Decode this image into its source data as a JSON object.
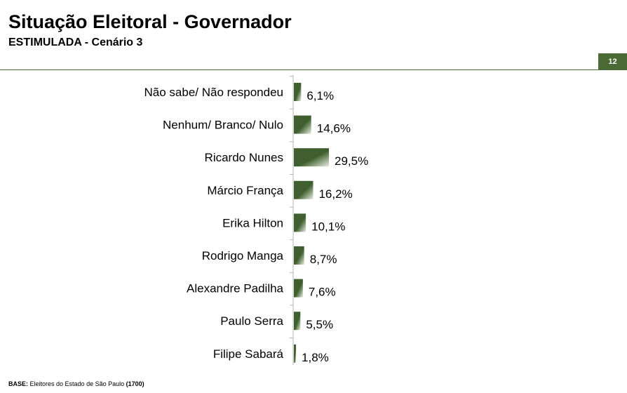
{
  "header": {
    "title": "Situação Eleitoral - Governador",
    "subtitle": "ESTIMULADA - Cenário 3",
    "page_number": "12"
  },
  "colors": {
    "accent": "#4a6b35",
    "bar_dark": "#3f5f2e",
    "bar_light": "#e8eee2"
  },
  "chart_data": {
    "type": "bar",
    "orientation": "horizontal",
    "categories": [
      "Não sabe/ Não respondeu",
      "Nenhum/ Branco/ Nulo",
      "Ricardo Nunes",
      "Márcio França",
      "Erika Hilton",
      "Rodrigo Manga",
      "Alexandre Padilha",
      "Paulo Serra",
      "Filipe Sabará"
    ],
    "values": [
      6.1,
      14.6,
      29.5,
      16.2,
      10.1,
      8.7,
      7.6,
      5.5,
      1.8
    ],
    "value_labels": [
      "6,1%",
      "14,6%",
      "29,5%",
      "16,2%",
      "10,1%",
      "8,7%",
      "7,6%",
      "5,5%",
      "1,8%"
    ],
    "grid": false
  },
  "footer": {
    "base_label": "BASE:",
    "base_text": " Eleitores do Estado de São Paulo ",
    "base_count": "(1700)"
  }
}
